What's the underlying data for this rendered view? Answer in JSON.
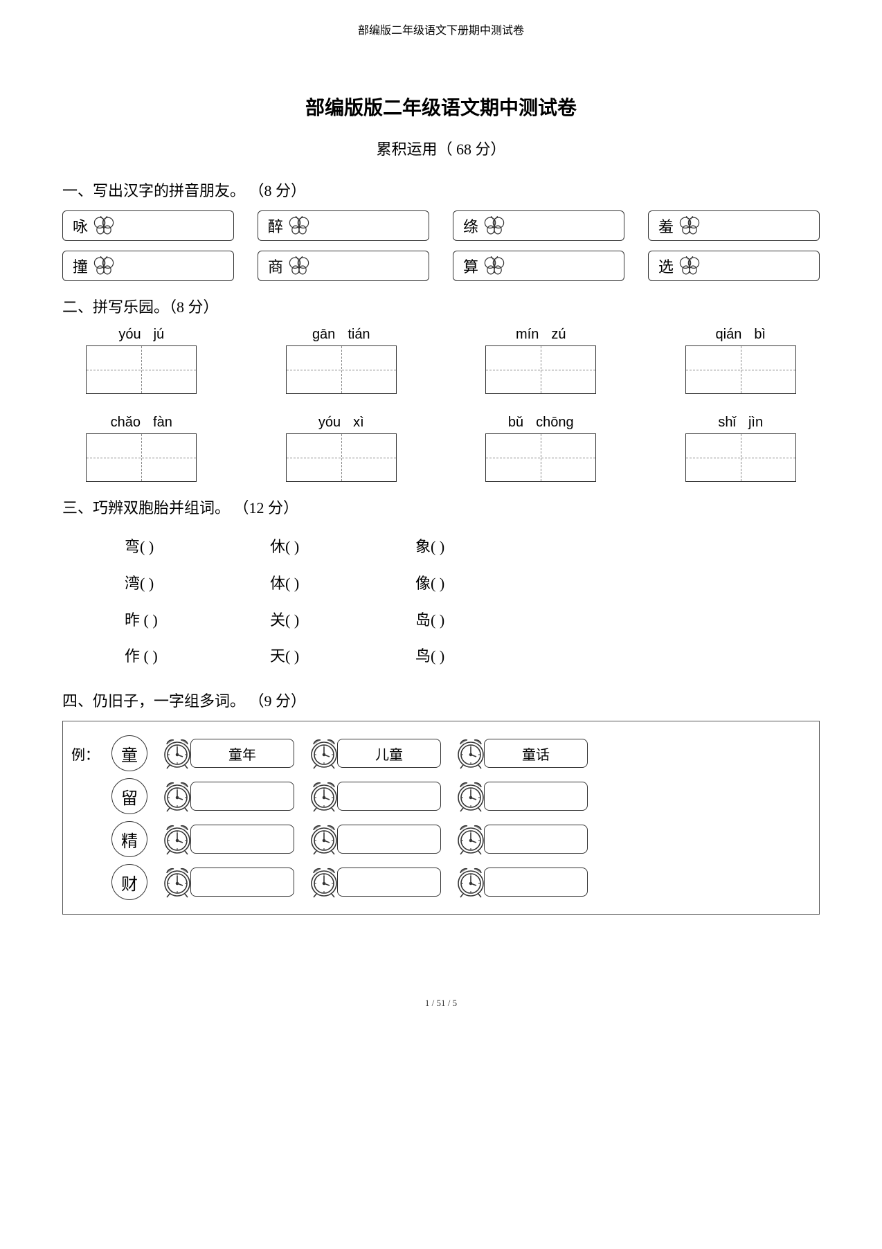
{
  "header": "部编版二年级语文下册期中测试卷",
  "main_title": "部编版版二年级语文期中测试卷",
  "subtitle": "累积运用（ 68 分）",
  "footer": "1 / 51 / 5",
  "colors": {
    "text": "#000000",
    "background": "#ffffff",
    "border": "#333333",
    "dash": "#888888"
  },
  "section1": {
    "title": "一、写出汉字的拼音朋友。  （8 分）",
    "items": [
      "咏",
      "醉",
      "绦",
      "羞",
      "撞",
      "商",
      "算",
      "选"
    ]
  },
  "section2": {
    "title": "二、拼写乐园。（8 分）",
    "items": [
      {
        "p1": "yóu",
        "p2": "jú"
      },
      {
        "p1": "gān",
        "p2": "tián"
      },
      {
        "p1": "mín",
        "p2": "zú"
      },
      {
        "p1": "qián",
        "p2": "bì"
      },
      {
        "p1": "chǎo",
        "p2": "fàn"
      },
      {
        "p1": "yóu",
        "p2": "xì"
      },
      {
        "p1": "bǔ",
        "p2": "chōng"
      },
      {
        "p1": "shǐ",
        "p2": "jìn"
      }
    ]
  },
  "section3": {
    "title": "三、巧辨双胞胎并组词。  （12 分）",
    "rows": [
      [
        "弯(      )",
        "休(      )",
        "象(    )"
      ],
      [
        "湾(      )",
        "体(      )",
        "像(    )"
      ],
      [
        "昨 (    )",
        "关(      )",
        "岛(    )"
      ],
      [
        "作 (    )",
        "天(      )",
        "鸟(    )"
      ]
    ]
  },
  "section4": {
    "title": "四、仍旧子，一字组多词。  （9 分）",
    "example_label": "例：",
    "rows": [
      {
        "char": "童",
        "words": [
          "童年",
          "儿童",
          "童话"
        ]
      },
      {
        "char": "留",
        "words": [
          "",
          "",
          ""
        ]
      },
      {
        "char": "精",
        "words": [
          "",
          "",
          ""
        ]
      },
      {
        "char": "财",
        "words": [
          "",
          "",
          ""
        ]
      }
    ]
  }
}
